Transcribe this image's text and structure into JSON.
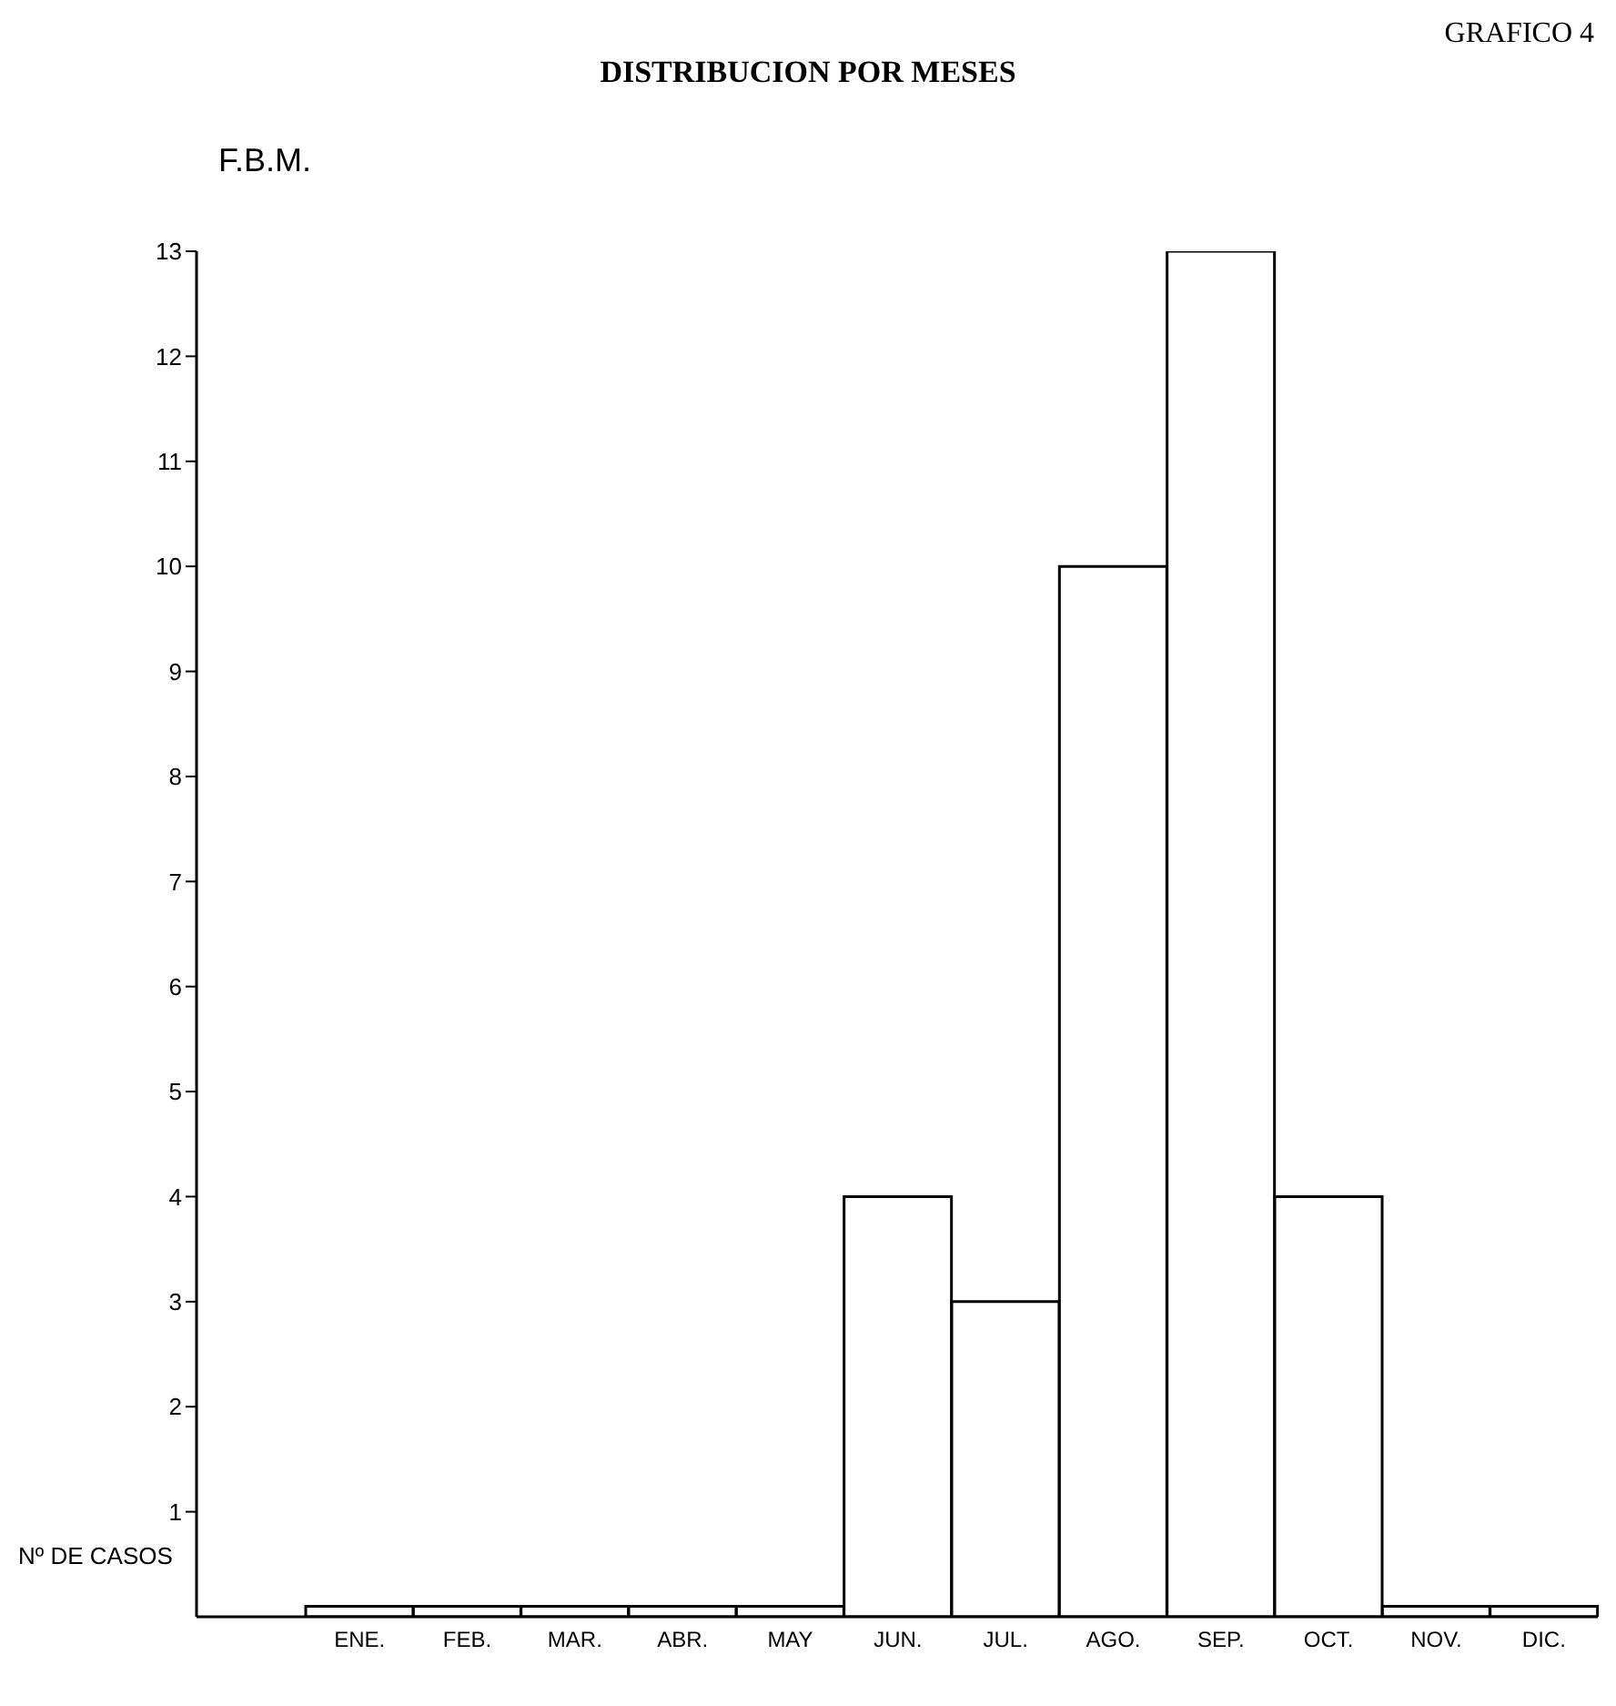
{
  "chart_data": {
    "type": "bar",
    "title": "DISTRIBUCION POR MESES",
    "subtitle": "F.B.M.",
    "ylabel": "Nº DE CASOS",
    "annotations": [
      "GRAFICO 4"
    ],
    "categories": [
      "ENE.",
      "FEB.",
      "MAR.",
      "ABR.",
      "MAY",
      "JUN.",
      "JUL.",
      "AGO.",
      "SEP.",
      "OCT.",
      "NOV.",
      "DIC."
    ],
    "values": [
      0.1,
      0.1,
      0.1,
      0.1,
      0.1,
      4,
      3,
      10,
      13,
      4,
      0.1,
      0.1
    ],
    "color": "#ffffff",
    "ylim": [
      0,
      13
    ],
    "yticks": [
      1,
      2,
      3,
      4,
      5,
      6,
      7,
      8,
      9,
      10,
      11,
      12,
      13
    ],
    "grid": false
  }
}
